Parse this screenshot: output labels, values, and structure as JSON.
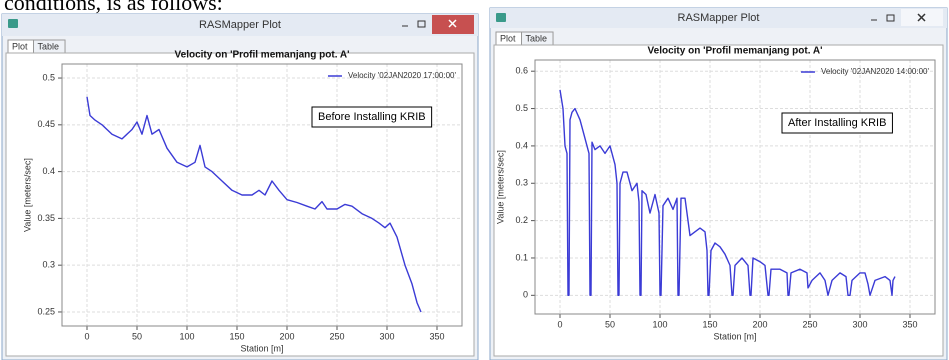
{
  "document_text": "conditions, is as follows:",
  "windows": [
    {
      "title": "RASMapper Plot",
      "tabs": [
        "Plot",
        "Table"
      ]
    },
    {
      "title": "RASMapper Plot",
      "tabs": [
        "Plot",
        "Table"
      ]
    }
  ],
  "chart_data": [
    {
      "type": "line",
      "title": "Velocity on 'Profil memanjang pot. A'",
      "xlabel": "Station [m]",
      "ylabel": "Value [meters/sec]",
      "annotation": "Before Installing KRIB",
      "x": [
        0,
        3,
        8,
        15,
        25,
        35,
        45,
        50,
        55,
        60,
        65,
        72,
        80,
        90,
        100,
        108,
        113,
        118,
        125,
        135,
        145,
        155,
        165,
        172,
        178,
        185,
        192,
        200,
        210,
        220,
        228,
        235,
        240,
        250,
        258,
        265,
        275,
        285,
        292,
        298,
        303,
        310,
        318,
        325,
        330,
        334
      ],
      "series": [
        {
          "name": "Velocity '02JAN2020 17:00:00'",
          "color": "#3b3bd6",
          "values": [
            0.48,
            0.46,
            0.455,
            0.45,
            0.44,
            0.435,
            0.445,
            0.453,
            0.44,
            0.46,
            0.44,
            0.445,
            0.425,
            0.41,
            0.405,
            0.41,
            0.428,
            0.405,
            0.4,
            0.39,
            0.38,
            0.375,
            0.375,
            0.38,
            0.375,
            0.39,
            0.38,
            0.37,
            0.367,
            0.363,
            0.36,
            0.368,
            0.36,
            0.36,
            0.365,
            0.363,
            0.355,
            0.35,
            0.345,
            0.34,
            0.345,
            0.33,
            0.3,
            0.28,
            0.26,
            0.25
          ]
        }
      ],
      "xlim": [
        -25,
        375
      ],
      "ylim": [
        0.235,
        0.515
      ],
      "xticks": [
        0,
        50,
        100,
        150,
        200,
        250,
        300,
        350
      ],
      "yticks": [
        0.25,
        0.3,
        0.35,
        0.4,
        0.45,
        0.5
      ],
      "grid": true
    },
    {
      "type": "line",
      "title": "Velocity on 'Profil memanjang pot. A'",
      "xlabel": "Station [m]",
      "ylabel": "Value [meters/sec]",
      "annotation": "After Installing KRIB",
      "x": [
        0,
        3,
        5,
        7,
        8,
        9,
        10,
        12,
        15,
        20,
        25,
        29,
        30,
        31,
        32,
        35,
        40,
        45,
        50,
        55,
        57,
        58,
        59,
        60,
        63,
        67,
        72,
        77,
        79,
        80,
        81,
        82,
        86,
        90,
        95,
        99,
        100,
        101,
        103,
        108,
        113,
        117,
        118,
        119,
        121,
        125,
        130,
        135,
        140,
        145,
        147,
        148,
        149,
        151,
        155,
        160,
        165,
        170,
        172,
        173,
        175,
        182,
        188,
        190,
        191,
        193,
        200,
        205,
        208,
        209,
        211,
        220,
        227,
        228,
        229,
        231,
        240,
        247,
        248,
        252,
        260,
        265,
        268,
        272,
        280,
        286,
        288,
        290,
        292,
        300,
        305,
        308,
        310,
        315,
        325,
        330,
        332,
        333,
        335
      ],
      "series": [
        {
          "name": "Velocity '02JAN2020 14:00:00'",
          "color": "#3b3bd6",
          "values": [
            0.55,
            0.5,
            0.4,
            0.38,
            0.0,
            0.0,
            0.47,
            0.49,
            0.5,
            0.47,
            0.42,
            0.38,
            0.0,
            0.0,
            0.41,
            0.39,
            0.4,
            0.38,
            0.4,
            0.35,
            0.3,
            0.0,
            0.0,
            0.3,
            0.33,
            0.33,
            0.28,
            0.3,
            0.25,
            0.0,
            0.0,
            0.28,
            0.27,
            0.22,
            0.27,
            0.22,
            0.0,
            0.0,
            0.24,
            0.26,
            0.23,
            0.26,
            0.0,
            0.0,
            0.26,
            0.26,
            0.16,
            0.17,
            0.18,
            0.17,
            0.12,
            0.0,
            0.0,
            0.12,
            0.14,
            0.13,
            0.11,
            0.08,
            0.0,
            0.0,
            0.08,
            0.1,
            0.08,
            0.0,
            0.0,
            0.1,
            0.09,
            0.08,
            0.0,
            0.0,
            0.07,
            0.07,
            0.06,
            0.0,
            0.0,
            0.06,
            0.07,
            0.06,
            0.02,
            0.04,
            0.06,
            0.04,
            0.0,
            0.04,
            0.06,
            0.05,
            0.0,
            0.0,
            0.04,
            0.06,
            0.06,
            0.03,
            0.0,
            0.04,
            0.05,
            0.04,
            0.0,
            0.04,
            0.05
          ]
        }
      ],
      "xlim": [
        -25,
        375
      ],
      "ylim": [
        -0.05,
        0.63
      ],
      "xticks": [
        0,
        50,
        100,
        150,
        200,
        250,
        300,
        350
      ],
      "yticks": [
        0,
        0.1,
        0.2,
        0.3,
        0.4,
        0.5,
        0.6
      ],
      "grid": true
    }
  ]
}
